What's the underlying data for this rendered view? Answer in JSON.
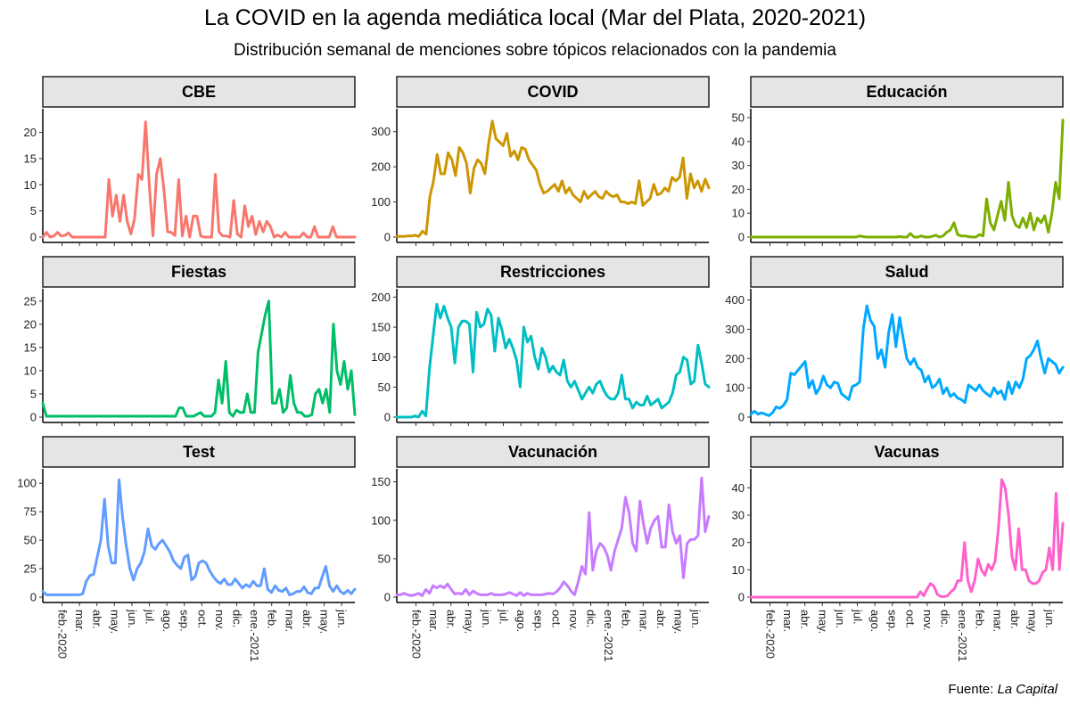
{
  "title": "La COVID en la agenda mediática local (Mar del Plata, 2020-2021)",
  "subtitle": "Distribución semanal de menciones sobre tópicos relacionados con la pandemia",
  "caption": {
    "prefix": "Fuente: ",
    "source": "La Capital"
  },
  "chart_data": {
    "type": "line",
    "x_tick_labels": [
      "feb.-2020",
      "mar.",
      "abr.",
      "may.",
      "jun.",
      "jul.",
      "ago.",
      "sep.",
      "oct.",
      "nov.",
      "dic.",
      "ene.-2021",
      "feb.",
      "mar.",
      "abr.",
      "may.",
      "jun."
    ],
    "x_unit": "months since 2020-01",
    "panels": [
      {
        "name": "CBE",
        "color": "#F8766D",
        "ylim": [
          0,
          23.5
        ],
        "yticks": [
          0,
          5,
          10,
          15,
          20
        ],
        "values": [
          0,
          0.9,
          0,
          0.2,
          0.9,
          0.2,
          0.3,
          0.8,
          0,
          0,
          0,
          0,
          0,
          0,
          0,
          0,
          0,
          0,
          11,
          4,
          8,
          3,
          8,
          3,
          0.6,
          3.5,
          12,
          11,
          22,
          10,
          0.2,
          12,
          15,
          9,
          1,
          0.9,
          0.3,
          11,
          0.2,
          4,
          0,
          4,
          4,
          0.2,
          0,
          0,
          0,
          12,
          1,
          0.2,
          0.2,
          0,
          7,
          0.6,
          0,
          6,
          2,
          4,
          0.5,
          3,
          1,
          3,
          2,
          0,
          0.4,
          0,
          0.9,
          0,
          0,
          0,
          0,
          0.8,
          0,
          0,
          2,
          0,
          0,
          0,
          0,
          2,
          0,
          0,
          0,
          0,
          0,
          0
        ]
      },
      {
        "name": "COVID",
        "color": "#CD9600",
        "ylim": [
          0,
          350
        ],
        "yticks": [
          0,
          100,
          200,
          300
        ],
        "values": [
          2,
          2,
          2,
          3,
          3,
          5,
          2,
          17,
          8,
          115,
          160,
          235,
          180,
          180,
          240,
          220,
          175,
          255,
          240,
          210,
          125,
          195,
          220,
          210,
          180,
          265,
          330,
          280,
          270,
          260,
          295,
          230,
          245,
          220,
          255,
          250,
          220,
          205,
          190,
          150,
          125,
          130,
          140,
          150,
          130,
          160,
          125,
          140,
          120,
          110,
          100,
          130,
          110,
          120,
          130,
          115,
          110,
          130,
          120,
          115,
          120,
          100,
          100,
          95,
          100,
          95,
          160,
          90,
          100,
          110,
          150,
          120,
          125,
          140,
          130,
          170,
          160,
          170,
          225,
          110,
          180,
          140,
          160,
          130,
          165,
          140
        ]
      },
      {
        "name": "Educación",
        "color": "#7CAE00",
        "ylim": [
          0,
          51.5
        ],
        "yticks": [
          0,
          10,
          20,
          30,
          40,
          50
        ],
        "values": [
          0,
          0,
          0,
          0,
          0,
          0,
          0,
          0,
          0,
          0,
          0,
          0,
          0,
          0,
          0,
          0,
          0,
          0,
          0,
          0,
          0,
          0,
          0,
          0,
          0,
          0,
          0,
          0,
          0,
          0,
          0.5,
          0.2,
          0,
          0,
          0,
          0,
          0,
          0,
          0,
          0,
          0,
          0.2,
          0,
          0,
          1.5,
          0,
          0,
          0.5,
          0,
          0,
          0.3,
          0.8,
          0,
          0.5,
          2,
          3,
          6,
          1,
          0.5,
          0.5,
          0.2,
          0,
          0,
          1,
          0.5,
          16,
          6,
          3,
          9,
          15,
          7,
          23,
          9,
          5,
          4,
          8,
          4,
          10,
          3,
          8,
          6,
          9,
          2,
          10,
          23,
          16,
          49
        ]
      },
      {
        "name": "Fiestas",
        "color": "#00BE67",
        "ylim": [
          0,
          26.5
        ],
        "yticks": [
          0,
          5,
          10,
          15,
          20,
          25
        ],
        "values": [
          3,
          0.2,
          0.2,
          0.2,
          0.2,
          0.2,
          0.2,
          0.2,
          0.2,
          0.2,
          0.2,
          0.2,
          0.2,
          0.2,
          0.2,
          0.2,
          0.2,
          0.2,
          0.2,
          0.2,
          0.2,
          0.2,
          0.2,
          0.2,
          0.2,
          0.2,
          0.2,
          0.2,
          0.2,
          0.2,
          0.2,
          0.2,
          0.2,
          0.2,
          0.2,
          0.2,
          0.2,
          0.2,
          2,
          2,
          0.2,
          0.2,
          0.2,
          0.6,
          1,
          0.2,
          0.2,
          0.2,
          1,
          8,
          3,
          12,
          1,
          0.2,
          1.5,
          1,
          1,
          5,
          1,
          1,
          14,
          18,
          22,
          25,
          3,
          3,
          6,
          1,
          2,
          9,
          3,
          1,
          1,
          0.2,
          0.2,
          0.5,
          5,
          6,
          3,
          6,
          1,
          20,
          10,
          7,
          12,
          6,
          10,
          0.5
        ]
      },
      {
        "name": "Restricciones",
        "color": "#00BFC4",
        "ylim": [
          0,
          205
        ],
        "yticks": [
          0,
          50,
          100,
          150,
          200
        ],
        "values": [
          0,
          0,
          0,
          0,
          0,
          2,
          0,
          10,
          2,
          80,
          135,
          188,
          165,
          185,
          165,
          150,
          90,
          150,
          160,
          160,
          155,
          75,
          175,
          150,
          155,
          180,
          170,
          110,
          165,
          145,
          115,
          130,
          115,
          95,
          50,
          150,
          125,
          135,
          100,
          80,
          115,
          100,
          75,
          85,
          75,
          70,
          95,
          60,
          50,
          60,
          45,
          30,
          40,
          50,
          40,
          55,
          60,
          45,
          35,
          30,
          30,
          40,
          70,
          30,
          30,
          15,
          25,
          20,
          20,
          35,
          20,
          25,
          30,
          15,
          20,
          25,
          40,
          70,
          75,
          100,
          95,
          55,
          60,
          120,
          90,
          55,
          50
        ]
      },
      {
        "name": "Salud",
        "color": "#00A9FF",
        "ylim": [
          0,
          420
        ],
        "yticks": [
          0,
          100,
          200,
          300,
          400
        ],
        "values": [
          10,
          20,
          10,
          15,
          10,
          5,
          15,
          35,
          30,
          40,
          60,
          150,
          145,
          160,
          175,
          190,
          100,
          125,
          80,
          100,
          140,
          110,
          100,
          120,
          115,
          80,
          70,
          60,
          105,
          110,
          120,
          300,
          380,
          330,
          310,
          200,
          230,
          170,
          290,
          350,
          240,
          340,
          270,
          200,
          180,
          200,
          170,
          160,
          120,
          140,
          100,
          110,
          130,
          80,
          100,
          70,
          80,
          65,
          60,
          50,
          110,
          100,
          90,
          110,
          90,
          80,
          70,
          100,
          80,
          90,
          60,
          120,
          80,
          120,
          100,
          130,
          200,
          210,
          230,
          260,
          200,
          150,
          200,
          190,
          180,
          150,
          170
        ]
      },
      {
        "name": "Test",
        "color": "#619CFF",
        "ylim": [
          0,
          108
        ],
        "yticks": [
          0,
          25,
          50,
          75,
          100
        ],
        "values": [
          5,
          2,
          2,
          2,
          2,
          2,
          2,
          2,
          2,
          2,
          2,
          3,
          14,
          19,
          20,
          35,
          50,
          86,
          45,
          30,
          30,
          103,
          70,
          45,
          25,
          15,
          25,
          30,
          40,
          60,
          45,
          42,
          47,
          50,
          45,
          40,
          32,
          28,
          25,
          35,
          37,
          15,
          18,
          30,
          32,
          30,
          23,
          18,
          14,
          12,
          16,
          11,
          11,
          16,
          12,
          8,
          11,
          9,
          14,
          10,
          10,
          25,
          7,
          4,
          10,
          6,
          5,
          8,
          2,
          3,
          5,
          5,
          9,
          4,
          3,
          8,
          8,
          18,
          27,
          10,
          5,
          10,
          5,
          3,
          6,
          3,
          7
        ]
      },
      {
        "name": "Vacunación",
        "color": "#C77CFF",
        "ylim": [
          0,
          160
        ],
        "yticks": [
          0,
          50,
          100,
          150
        ],
        "values": [
          3,
          3,
          5,
          3,
          2,
          3,
          5,
          2,
          10,
          5,
          15,
          12,
          15,
          12,
          17,
          10,
          4,
          5,
          4,
          10,
          3,
          8,
          5,
          3,
          3,
          3,
          5,
          3,
          3,
          3,
          4,
          6,
          4,
          2,
          6,
          2,
          5,
          3,
          3,
          3,
          3,
          4,
          5,
          4,
          7,
          12,
          20,
          15,
          8,
          3,
          20,
          40,
          30,
          110,
          35,
          60,
          70,
          65,
          55,
          35,
          60,
          75,
          90,
          130,
          110,
          70,
          60,
          125,
          95,
          70,
          90,
          100,
          105,
          65,
          65,
          120,
          85,
          70,
          80,
          25,
          70,
          75,
          75,
          80,
          155,
          85,
          105
        ]
      },
      {
        "name": "Vacunas",
        "color": "#FF61CC",
        "ylim": [
          0,
          45
        ],
        "yticks": [
          0,
          10,
          20,
          30,
          40
        ],
        "values": [
          0,
          0,
          0,
          0,
          0,
          0,
          0,
          0,
          0,
          0,
          0,
          0,
          0,
          0,
          0,
          0,
          0,
          0,
          0,
          0,
          0,
          0,
          0,
          0,
          0,
          0,
          0,
          0,
          0,
          0,
          0,
          0,
          0,
          0,
          0,
          0,
          0,
          0,
          0,
          0,
          0,
          0,
          0,
          0,
          0,
          0,
          0,
          0,
          0,
          0,
          2,
          0.5,
          3,
          5,
          4,
          1,
          0.2,
          0.2,
          0.5,
          2,
          3,
          6,
          6,
          20,
          6,
          2,
          6,
          14,
          10,
          8,
          12,
          10,
          13,
          25,
          43,
          40,
          30,
          15,
          10,
          25,
          10,
          10,
          6,
          5,
          5,
          6,
          9,
          10,
          18,
          10,
          38,
          10,
          27
        ]
      }
    ],
    "facet_columns": 3,
    "grid": false
  }
}
